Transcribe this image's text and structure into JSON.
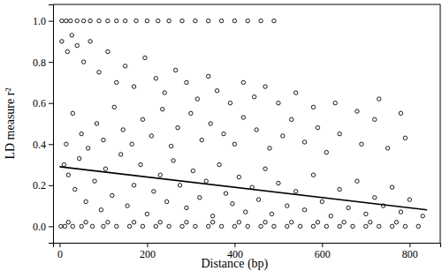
{
  "chart_data": {
    "type": "scatter",
    "x_label": "Distance (bp)",
    "y_label": "LD measure r²",
    "xlim": [
      -15,
      870
    ],
    "ylim": [
      -0.08,
      1.08
    ],
    "xticks": [
      0,
      200,
      400,
      600,
      800
    ],
    "yticks": [
      {
        "value": 0,
        "label": "0.0"
      },
      {
        "value": 0.2,
        "label": "0.2"
      },
      {
        "value": 0.4,
        "label": "0.4"
      },
      {
        "value": 0.6,
        "label": "0.6"
      },
      {
        "value": 0.8,
        "label": "0.8"
      },
      {
        "value": 1,
        "label": "1.0"
      }
    ],
    "grid": false,
    "series": [
      {
        "type": "scatter",
        "color": "#000000",
        "marker": "circle",
        "x": [
          5,
          15,
          25,
          40,
          55,
          70,
          90,
          110,
          130,
          150,
          175,
          200,
          225,
          250,
          280,
          310,
          340,
          370,
          400,
          430,
          460,
          490,
          3,
          12,
          30,
          50,
          75,
          100,
          130,
          160,
          190,
          220,
          250,
          280,
          310,
          340,
          370,
          400,
          430,
          460,
          490,
          520,
          550,
          580,
          610,
          640,
          670,
          700,
          730,
          760,
          790,
          820,
          20,
          60,
          110,
          170,
          230,
          290,
          350,
          410,
          470,
          530,
          590,
          650,
          710,
          770,
          10,
          20,
          35,
          45,
          60,
          80,
          95,
          105,
          120,
          140,
          155,
          170,
          185,
          200,
          215,
          230,
          245,
          260,
          275,
          290,
          305,
          320,
          335,
          350,
          365,
          380,
          395,
          410,
          425,
          440,
          455,
          470,
          485,
          500,
          520,
          540,
          560,
          580,
          600,
          620,
          640,
          660,
          680,
          700,
          720,
          740,
          760,
          780,
          800,
          830,
          15,
          30,
          50,
          65,
          85,
          100,
          125,
          145,
          165,
          190,
          210,
          235,
          255,
          270,
          300,
          325,
          345,
          375,
          400,
          420,
          450,
          480,
          510,
          530,
          560,
          590,
          610,
          640,
          690,
          720,
          750,
          790,
          5,
          18,
          28,
          40,
          55,
          70,
          90,
          110,
          130,
          150,
          170,
          195,
          220,
          240,
          265,
          290,
          315,
          340,
          360,
          390,
          420,
          445,
          470,
          500,
          540,
          580,
          630,
          680,
          730,
          780
        ],
        "values": [
          1,
          1,
          1,
          1,
          1,
          1,
          1,
          1,
          1,
          1,
          1,
          1,
          1,
          1,
          1,
          1,
          1,
          1,
          1,
          1,
          1,
          1,
          0,
          0,
          0,
          0,
          0,
          0,
          0,
          0,
          0,
          0,
          0,
          0,
          0,
          0,
          0,
          0,
          0,
          0,
          0,
          0,
          0,
          0,
          0,
          0,
          0,
          0,
          0,
          0,
          0,
          0,
          0.02,
          0.02,
          0.02,
          0.02,
          0.02,
          0.02,
          0.02,
          0.02,
          0.02,
          0.02,
          0.02,
          0.02,
          0.02,
          0.02,
          0.3,
          0.25,
          0.18,
          0.33,
          0.12,
          0.22,
          0.08,
          0.28,
          0.15,
          0.35,
          0.1,
          0.2,
          0.3,
          0.06,
          0.17,
          0.25,
          0.12,
          0.32,
          0.2,
          0.09,
          0.27,
          0.14,
          0.22,
          0.05,
          0.3,
          0.16,
          0.11,
          0.24,
          0.07,
          0.19,
          0.13,
          0.28,
          0.06,
          0.21,
          0.1,
          0.17,
          0.08,
          0.25,
          0.12,
          0.05,
          0.18,
          0.09,
          0.22,
          0.06,
          0.14,
          0.1,
          0.19,
          0.07,
          0.13,
          0.05,
          0.4,
          0.55,
          0.45,
          0.38,
          0.5,
          0.42,
          0.58,
          0.47,
          0.4,
          0.52,
          0.44,
          0.57,
          0.39,
          0.48,
          0.55,
          0.42,
          0.5,
          0.45,
          0.4,
          0.53,
          0.47,
          0.38,
          0.44,
          0.52,
          0.41,
          0.48,
          0.36,
          0.45,
          0.4,
          0.52,
          0.38,
          0.43,
          0.9,
          0.85,
          0.93,
          0.88,
          0.8,
          0.9,
          0.75,
          0.85,
          0.7,
          0.78,
          0.68,
          0.82,
          0.72,
          0.65,
          0.76,
          0.7,
          0.62,
          0.73,
          0.66,
          0.6,
          0.7,
          0.63,
          0.68,
          0.6,
          0.65,
          0.58,
          0.6,
          0.56,
          0.62,
          0.55
        ]
      },
      {
        "type": "line",
        "color": "#000000",
        "line_style": "solid",
        "x": [
          0,
          840
        ],
        "values": [
          0.29,
          0.08
        ]
      }
    ]
  }
}
